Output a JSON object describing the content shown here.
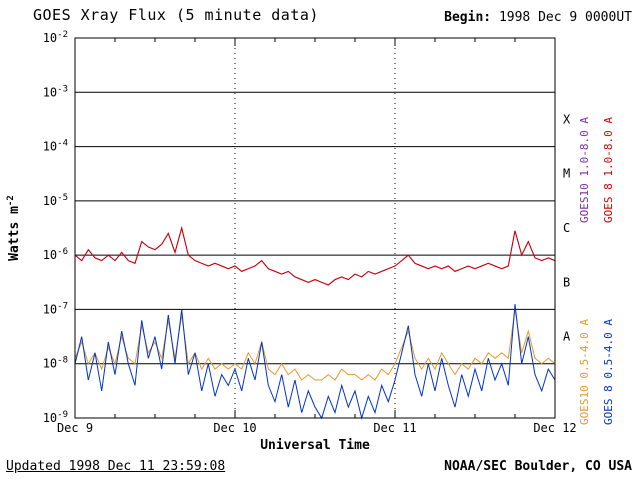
{
  "header": {
    "title": "GOES Xray Flux (5 minute data)",
    "begin_label": "Begin:",
    "begin_value": "1998 Dec 9 0000UT"
  },
  "footer": {
    "updated": "Updated 1998 Dec 11 23:59:08",
    "credit": "NOAA/SEC Boulder, CO USA"
  },
  "chart_data": {
    "type": "line",
    "title": "GOES Xray Flux (5 minute data)",
    "xlabel": "Universal Time",
    "ylabel": "Watts m",
    "ylabel_sup": "-2",
    "x_range_days": [
      0,
      3
    ],
    "ylim_log10": [
      -9,
      -2
    ],
    "grid": "decade horizontal solid, day vertical dotted",
    "x_ticks": [
      {
        "label": "Dec 9",
        "day": 0
      },
      {
        "label": "Dec 10",
        "day": 1
      },
      {
        "label": "Dec 11",
        "day": 2
      },
      {
        "label": "Dec 12",
        "day": 3
      }
    ],
    "flare_classes": [
      {
        "label": "X",
        "log10": -3.5
      },
      {
        "label": "M",
        "log10": -4.5
      },
      {
        "label": "C",
        "log10": -5.5
      },
      {
        "label": "B",
        "log10": -6.5
      },
      {
        "label": "A",
        "log10": -7.5
      }
    ],
    "right_labels": [
      {
        "text": "GOES10 1.0-8.0 A",
        "color": "#7a2ea0"
      },
      {
        "text": "GOES 8 1.0-8.0 A",
        "color": "#d40000"
      },
      {
        "text": "GOES10 0.5-4.0 A",
        "color": "#e09b2d"
      },
      {
        "text": "GOES 8 0.5-4.0 A",
        "color": "#0033cc"
      }
    ],
    "sample_interval_hours": 1,
    "series": [
      {
        "name": "GOES10 1.0-8.0 A",
        "color": "#7a2ea0",
        "log10_flux": [
          -6.0,
          -6.1,
          -5.9,
          -6.05,
          -6.1,
          -6.0,
          -6.1,
          -5.95,
          -6.1,
          -6.15,
          -5.75,
          -5.85,
          -5.9,
          -5.8,
          -5.6,
          -5.95,
          -5.5,
          -6.0,
          -6.1,
          -6.15,
          -6.2,
          -6.15,
          -6.2,
          -6.25,
          -6.2,
          -6.3,
          -6.25,
          -6.2,
          -6.1,
          -6.25,
          -6.3,
          -6.35,
          -6.3,
          -6.4,
          -6.45,
          -6.5,
          -6.45,
          -6.5,
          -6.55,
          -6.45,
          -6.4,
          -6.45,
          -6.35,
          -6.4,
          -6.3,
          -6.35,
          -6.3,
          -6.25,
          -6.2,
          -6.1,
          -6.0,
          -6.15,
          -6.2,
          -6.25,
          -6.2,
          -6.25,
          -6.2,
          -6.3,
          -6.25,
          -6.2,
          -6.25,
          -6.2,
          -6.15,
          -6.2,
          -6.25,
          -6.2,
          -5.55,
          -6.0,
          -5.75,
          -6.05,
          -6.1,
          -6.05,
          -6.1
        ]
      },
      {
        "name": "GOES10 0.5-4.0 A",
        "color": "#e09b2d",
        "log10_flux": [
          -7.9,
          -7.6,
          -8.0,
          -7.8,
          -8.1,
          -7.7,
          -8.0,
          -7.5,
          -7.9,
          -8.0,
          -7.3,
          -7.8,
          -7.6,
          -7.9,
          -7.2,
          -7.9,
          -7.1,
          -8.0,
          -7.8,
          -8.1,
          -7.9,
          -8.1,
          -8.0,
          -8.1,
          -8.0,
          -8.1,
          -7.8,
          -8.0,
          -7.6,
          -8.1,
          -8.2,
          -8.0,
          -8.2,
          -8.1,
          -8.3,
          -8.2,
          -8.3,
          -8.3,
          -8.2,
          -8.3,
          -8.1,
          -8.2,
          -8.2,
          -8.3,
          -8.2,
          -8.3,
          -8.1,
          -8.2,
          -8.0,
          -7.7,
          -7.4,
          -7.9,
          -8.1,
          -7.9,
          -8.1,
          -7.8,
          -8.0,
          -8.2,
          -8.0,
          -8.1,
          -7.9,
          -8.0,
          -7.8,
          -7.9,
          -7.8,
          -7.9,
          -7.0,
          -7.8,
          -7.4,
          -7.9,
          -8.0,
          -7.9,
          -8.0
        ]
      },
      {
        "name": "GOES 8 0.5-4.0 A",
        "color": "#0033cc",
        "log10_flux": [
          -8.0,
          -7.5,
          -8.3,
          -7.8,
          -8.5,
          -7.6,
          -8.2,
          -7.4,
          -8.0,
          -8.4,
          -7.2,
          -7.9,
          -7.5,
          -8.1,
          -7.1,
          -8.0,
          -7.0,
          -8.2,
          -7.8,
          -8.5,
          -8.0,
          -8.6,
          -8.2,
          -8.4,
          -8.1,
          -8.5,
          -7.9,
          -8.3,
          -7.6,
          -8.4,
          -8.7,
          -8.2,
          -8.8,
          -8.3,
          -8.9,
          -8.5,
          -8.8,
          -9.0,
          -8.6,
          -8.9,
          -8.4,
          -8.8,
          -8.5,
          -9.0,
          -8.6,
          -8.9,
          -8.4,
          -8.7,
          -8.3,
          -7.8,
          -7.3,
          -8.2,
          -8.6,
          -8.0,
          -8.5,
          -7.9,
          -8.4,
          -8.8,
          -8.2,
          -8.6,
          -8.1,
          -8.5,
          -7.9,
          -8.3,
          -8.0,
          -8.4,
          -6.9,
          -8.0,
          -7.5,
          -8.2,
          -8.5,
          -8.1,
          -8.3
        ]
      },
      {
        "name": "GOES 8 1.0-8.0 A",
        "color": "#d40000",
        "log10_flux": [
          -6.0,
          -6.1,
          -5.9,
          -6.05,
          -6.1,
          -6.0,
          -6.1,
          -5.95,
          -6.1,
          -6.15,
          -5.75,
          -5.85,
          -5.9,
          -5.8,
          -5.6,
          -5.95,
          -5.5,
          -6.0,
          -6.1,
          -6.15,
          -6.2,
          -6.15,
          -6.2,
          -6.25,
          -6.2,
          -6.3,
          -6.25,
          -6.2,
          -6.1,
          -6.25,
          -6.3,
          -6.35,
          -6.3,
          -6.4,
          -6.45,
          -6.5,
          -6.45,
          -6.5,
          -6.55,
          -6.45,
          -6.4,
          -6.45,
          -6.35,
          -6.4,
          -6.3,
          -6.35,
          -6.3,
          -6.25,
          -6.2,
          -6.1,
          -6.0,
          -6.15,
          -6.2,
          -6.25,
          -6.2,
          -6.25,
          -6.2,
          -6.3,
          -6.25,
          -6.2,
          -6.25,
          -6.2,
          -6.15,
          -6.2,
          -6.25,
          -6.2,
          -5.55,
          -6.0,
          -5.75,
          -6.05,
          -6.1,
          -6.05,
          -6.1
        ]
      }
    ]
  }
}
